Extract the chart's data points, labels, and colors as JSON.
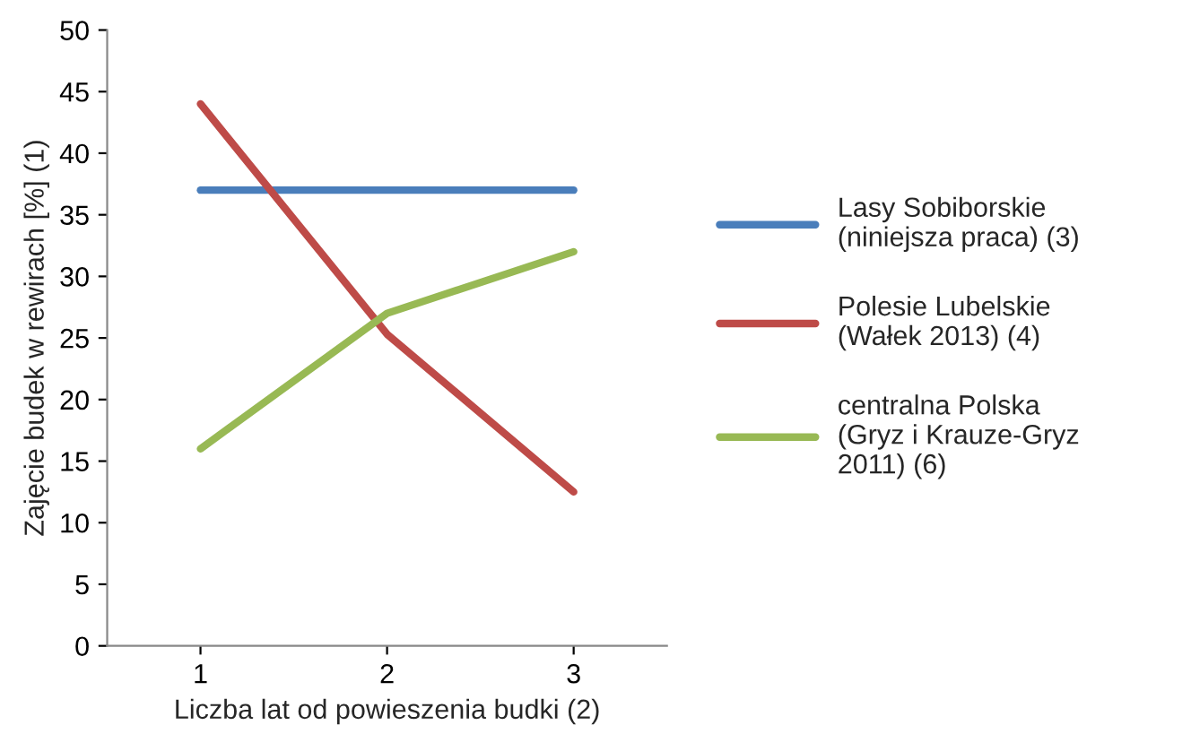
{
  "chart_data": {
    "type": "line",
    "xlabel": "Liczba lat od powieszenia budki (2)",
    "ylabel": "Zajęcie budek w rewirach [%] (1)",
    "categories": [
      "1",
      "2",
      "3"
    ],
    "series": [
      {
        "name": "Lasy Sobiborskie\n(niniejsza praca) (3)",
        "color": "#4a7ebb",
        "values": [
          37,
          37,
          37
        ]
      },
      {
        "name": "Polesie Lubelskie\n(Wałek 2013) (4)",
        "color": "#be4b48",
        "values": [
          44,
          25.3,
          12.5
        ]
      },
      {
        "name": "centralna Polska\n(Gryz i Krauze-Gryz\n2011) (6)",
        "color": "#98b954",
        "values": [
          16,
          27,
          32
        ]
      }
    ],
    "ylim": [
      0,
      50
    ],
    "yticks": [
      0,
      5,
      10,
      15,
      20,
      25,
      30,
      35,
      40,
      45,
      50
    ],
    "grid": false,
    "legend": "right",
    "marker": "none",
    "line_style": "solid"
  }
}
